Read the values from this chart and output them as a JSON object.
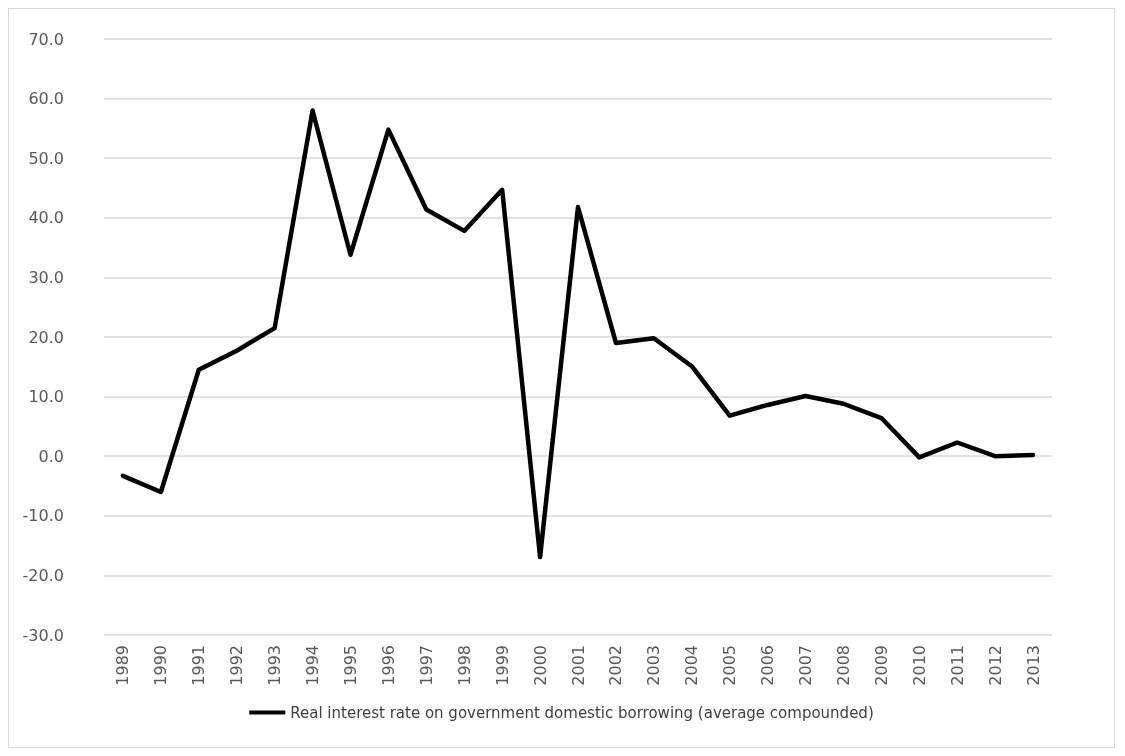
{
  "chart_data": {
    "type": "line",
    "categories": [
      "1989",
      "1990",
      "1991",
      "1992",
      "1993",
      "1994",
      "1995",
      "1996",
      "1997",
      "1998",
      "1999",
      "2000",
      "2001",
      "2002",
      "2003",
      "2004",
      "2005",
      "2006",
      "2007",
      "2008",
      "2009",
      "2010",
      "2011",
      "2012",
      "2013"
    ],
    "series": [
      {
        "name": "Real interest rate on government domestic borrowing (average compounded)",
        "color": "#000000",
        "values": [
          -3.3,
          -6.0,
          14.5,
          17.7,
          21.5,
          58.0,
          33.8,
          54.8,
          41.4,
          37.8,
          44.7,
          -16.9,
          41.8,
          19.0,
          19.8,
          15.1,
          6.8,
          8.6,
          10.1,
          8.8,
          6.4,
          -0.2,
          2.3,
          0.0,
          0.2
        ]
      }
    ],
    "ylim": [
      -30,
      70
    ],
    "yticks": [
      {
        "value": -30,
        "label": "-30.0"
      },
      {
        "value": -20,
        "label": "-20.0"
      },
      {
        "value": -10,
        "label": "-10.0"
      },
      {
        "value": 0,
        "label": "0.0"
      },
      {
        "value": 10,
        "label": "10.0"
      },
      {
        "value": 20,
        "label": "20.0"
      },
      {
        "value": 30,
        "label": "30.0"
      },
      {
        "value": 40,
        "label": "40.0"
      },
      {
        "value": 50,
        "label": "50.0"
      },
      {
        "value": 60,
        "label": "60.0"
      },
      {
        "value": 70,
        "label": "70.0"
      }
    ],
    "grid": "y",
    "legend": "bottom",
    "marker": "none",
    "line_style": "solid"
  }
}
